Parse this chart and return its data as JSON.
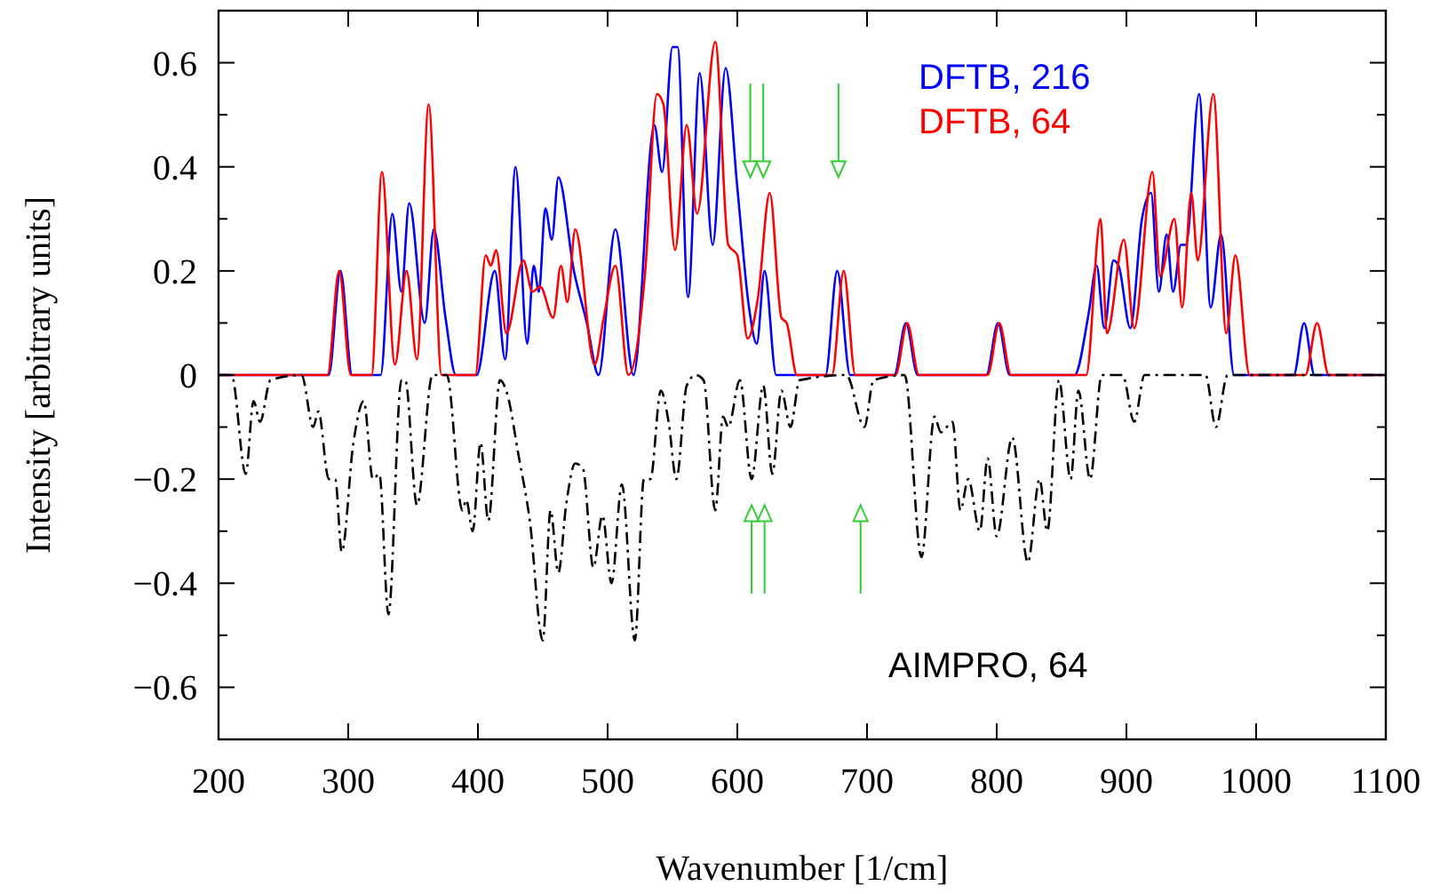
{
  "chart_data": {
    "type": "line",
    "xlabel": "Wavenumber [1/cm]",
    "ylabel": "Intensity [arbitrary units]",
    "xlim": [
      200,
      1100
    ],
    "ylim": [
      -0.7,
      0.7
    ],
    "xticks": [
      200,
      300,
      400,
      500,
      600,
      700,
      800,
      900,
      1000,
      1100
    ],
    "yticks": [
      {
        "value": -0.7,
        "label": null
      },
      {
        "value": -0.6,
        "label": "−0.6"
      },
      {
        "value": -0.5,
        "label": null
      },
      {
        "value": -0.4,
        "label": "−0.4"
      },
      {
        "value": -0.3,
        "label": null
      },
      {
        "value": -0.2,
        "label": "−0.2"
      },
      {
        "value": -0.1,
        "label": null
      },
      0,
      {
        "value": 0.1,
        "label": null
      },
      0.2,
      {
        "value": 0.3,
        "label": null
      },
      0.4,
      {
        "value": 0.5,
        "label": null
      },
      0.6,
      {
        "value": 0.7,
        "label": null
      }
    ],
    "grid": false,
    "marker": "none",
    "series": [
      {
        "name": "DFTB, 216",
        "color": "#0000ff",
        "line_style": "solid",
        "x": [
          200,
          285,
          294,
          303,
          325,
          334,
          341,
          347,
          359,
          366,
          375,
          383,
          399,
          413,
          421,
          429,
          438,
          443,
          447,
          452,
          457,
          462,
          474,
          484,
          493,
          506,
          520,
          536,
          542,
          550,
          554,
          562,
          571,
          581,
          591,
          600,
          609,
          615,
          621,
          630,
          668,
          677,
          687,
          721,
          730,
          739,
          792,
          801,
          810,
          860,
          871,
          877,
          883,
          890,
          894,
          903,
          912,
          919,
          925,
          931,
          936,
          942,
          946,
          956,
          965,
          973,
          983,
          1029,
          1037,
          1045,
          1100
        ],
        "values": [
          0,
          0,
          0.2,
          0,
          0,
          0.31,
          0.16,
          0.33,
          0.1,
          0.28,
          0.11,
          0,
          0,
          0.2,
          0.03,
          0.4,
          0.06,
          0.21,
          0.16,
          0.32,
          0.26,
          0.38,
          0.2,
          0.1,
          0,
          0.28,
          0,
          0.48,
          0.39,
          0.63,
          0.63,
          0.15,
          0.58,
          0.25,
          0.59,
          0.36,
          0.13,
          0.06,
          0.2,
          0,
          0,
          0.2,
          0,
          0,
          0.1,
          0,
          0,
          0.1,
          0,
          0,
          0.12,
          0.21,
          0.09,
          0.22,
          0.21,
          0.09,
          0.3,
          0.35,
          0.16,
          0.27,
          0.16,
          0.25,
          0.25,
          0.54,
          0.13,
          0.27,
          0,
          0,
          0.1,
          0,
          0
        ]
      },
      {
        "name": "DFTB, 64",
        "color": "#ff0000",
        "line_style": "solid",
        "x": [
          200,
          284,
          293,
          302,
          318,
          326,
          336,
          345,
          353,
          362,
          372,
          398,
          406,
          410,
          414,
          422,
          435,
          442,
          448,
          458,
          464,
          469,
          475,
          490,
          497,
          506,
          516,
          529,
          538,
          543,
          552,
          561,
          569,
          583,
          593,
          600,
          608,
          616,
          625,
          634,
          638,
          646,
          673,
          682,
          691,
          722,
          731,
          740,
          793,
          802,
          811,
          869,
          880,
          885,
          898,
          906,
          920,
          926,
          937,
          943,
          950,
          955,
          967,
          977,
          984,
          995,
          1038,
          1047,
          1056,
          1100
        ],
        "values": [
          0,
          0,
          0.2,
          0,
          0,
          0.39,
          0.02,
          0.2,
          0.03,
          0.52,
          0,
          0,
          0.23,
          0.21,
          0.24,
          0.08,
          0.22,
          0.16,
          0.17,
          0.11,
          0.21,
          0.14,
          0.28,
          0.02,
          0.11,
          0.21,
          0,
          0.2,
          0.54,
          0.52,
          0.24,
          0.48,
          0.31,
          0.64,
          0.25,
          0.23,
          0.07,
          0.15,
          0.35,
          0.11,
          0.1,
          0,
          0,
          0.2,
          0,
          0,
          0.1,
          0,
          0,
          0.1,
          0,
          0,
          0.3,
          0.08,
          0.26,
          0.09,
          0.39,
          0.19,
          0.3,
          0.13,
          0.35,
          0.22,
          0.54,
          0.08,
          0.23,
          0,
          0,
          0.1,
          0,
          0
        ]
      },
      {
        "name": "AIMPRO, 64",
        "color": "#000000",
        "line_style": "dashed",
        "x": [
          200,
          210,
          221,
          227,
          232,
          240,
          264,
          273,
          277,
          285,
          290,
          295,
          304,
          312,
          319,
          324,
          331,
          341,
          344,
          353,
          365,
          376,
          388,
          391,
          396,
          402,
          408,
          417,
          423,
          431,
          440,
          450,
          456,
          462,
          468,
          475,
          481,
          489,
          496,
          503,
          511,
          521,
          528,
          533,
          541,
          547,
          553,
          561,
          568,
          574,
          583,
          589,
          593,
          602,
          611,
          620,
          627,
          634,
          641,
          648,
          684,
          698,
          705,
          729,
          742,
          752,
          757,
          766,
          772,
          778,
          787,
          793,
          800,
          812,
          824,
          833,
          839,
          848,
          857,
          863,
          872,
          881,
          897,
          906,
          914,
          961,
          969,
          978,
          1100
        ],
        "values": [
          0,
          0,
          -0.19,
          -0.05,
          -0.09,
          -0.01,
          0,
          -0.1,
          -0.07,
          -0.2,
          -0.2,
          -0.34,
          -0.13,
          -0.05,
          -0.2,
          -0.19,
          -0.46,
          -0.01,
          -0.01,
          -0.25,
          0,
          0,
          -0.26,
          -0.24,
          -0.3,
          -0.13,
          -0.28,
          -0.01,
          -0.04,
          -0.15,
          -0.28,
          -0.51,
          -0.26,
          -0.38,
          -0.25,
          -0.17,
          -0.18,
          -0.37,
          -0.27,
          -0.4,
          -0.21,
          -0.51,
          -0.2,
          -0.2,
          -0.03,
          -0.09,
          -0.2,
          -0.02,
          0,
          -0.01,
          -0.26,
          -0.08,
          -0.1,
          -0.01,
          -0.2,
          -0.02,
          -0.19,
          -0.03,
          -0.1,
          -0.01,
          0,
          -0.1,
          -0.01,
          0,
          -0.35,
          -0.08,
          -0.11,
          -0.09,
          -0.26,
          -0.2,
          -0.3,
          -0.16,
          -0.31,
          -0.12,
          -0.36,
          -0.2,
          -0.3,
          -0.01,
          -0.2,
          -0.03,
          -0.2,
          0,
          0,
          -0.09,
          0,
          0,
          -0.1,
          0,
          0
        ]
      }
    ]
  }
}
